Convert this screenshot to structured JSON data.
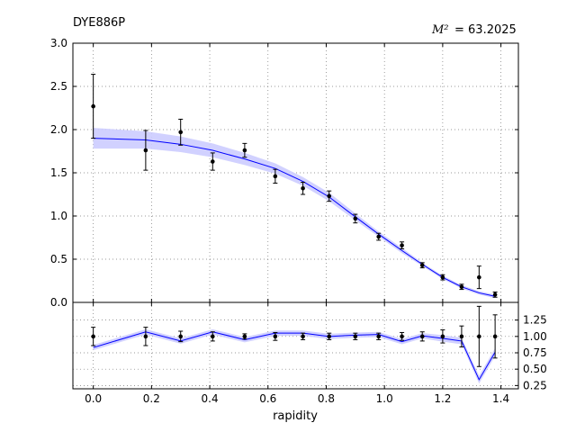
{
  "chart_data": {
    "type": "line",
    "title": "DYE886P",
    "annotation": {
      "label": "M²",
      "value": "= 63.2025"
    },
    "xlabel": "rapidity",
    "xlim": [
      -0.07,
      1.46
    ],
    "x_ticks": [
      "0.0",
      "0.2",
      "0.4",
      "0.6",
      "0.8",
      "1.0",
      "1.2",
      "1.4"
    ],
    "x_tick_values": [
      0.0,
      0.2,
      0.4,
      0.6,
      0.8,
      1.0,
      1.2,
      1.4
    ],
    "grid": true,
    "top_panel": {
      "ylim": [
        0.0,
        3.0
      ],
      "y_ticks": [
        "0.0",
        "0.5",
        "1.0",
        "1.5",
        "2.0",
        "2.5",
        "3.0"
      ],
      "y_tick_values": [
        0.0,
        0.5,
        1.0,
        1.5,
        2.0,
        2.5,
        3.0
      ],
      "data_points": {
        "x": [
          0.0,
          0.18,
          0.3,
          0.41,
          0.52,
          0.625,
          0.72,
          0.81,
          0.9,
          0.98,
          1.06,
          1.13,
          1.2,
          1.265,
          1.325,
          1.38
        ],
        "y": [
          2.27,
          1.76,
          1.97,
          1.63,
          1.76,
          1.46,
          1.32,
          1.23,
          0.97,
          0.76,
          0.66,
          0.43,
          0.29,
          0.18,
          0.29,
          0.09
        ],
        "err": [
          0.37,
          0.23,
          0.15,
          0.1,
          0.08,
          0.08,
          0.07,
          0.06,
          0.05,
          0.04,
          0.04,
          0.03,
          0.03,
          0.03,
          0.13,
          0.03
        ]
      },
      "prediction": {
        "x": [
          0.0,
          0.18,
          0.3,
          0.41,
          0.52,
          0.625,
          0.72,
          0.81,
          0.9,
          0.98,
          1.06,
          1.13,
          1.2,
          1.265,
          1.325,
          1.38
        ],
        "y": [
          1.9,
          1.88,
          1.83,
          1.76,
          1.66,
          1.55,
          1.4,
          1.22,
          0.99,
          0.79,
          0.6,
          0.44,
          0.29,
          0.18,
          0.11,
          0.07
        ],
        "band": [
          0.12,
          0.1,
          0.09,
          0.08,
          0.07,
          0.06,
          0.05,
          0.05,
          0.04,
          0.03,
          0.03,
          0.02,
          0.02,
          0.02,
          0.02,
          0.02
        ]
      },
      "colors": {
        "line": "#0000ff",
        "band": "#ccccff",
        "points": "#000000"
      }
    },
    "ratio_panel": {
      "ylim": [
        0.2,
        1.52
      ],
      "y_ticks": [
        "0.25",
        "0.50",
        "0.75",
        "1.00",
        "1.25"
      ],
      "y_tick_values": [
        0.25,
        0.5,
        0.75,
        1.0,
        1.25
      ],
      "data_points": {
        "x": [
          0.0,
          0.18,
          0.3,
          0.41,
          0.52,
          0.625,
          0.72,
          0.81,
          0.9,
          0.98,
          1.06,
          1.13,
          1.2,
          1.265,
          1.325,
          1.38
        ],
        "y": [
          1.0,
          1.0,
          1.0,
          1.0,
          1.0,
          1.0,
          1.0,
          1.0,
          1.0,
          1.0,
          1.0,
          1.0,
          1.0,
          1.0,
          1.0,
          1.0
        ],
        "err": [
          0.14,
          0.14,
          0.08,
          0.07,
          0.04,
          0.06,
          0.05,
          0.05,
          0.05,
          0.05,
          0.06,
          0.07,
          0.1,
          0.16,
          0.46,
          0.33
        ]
      },
      "prediction": {
        "x": [
          0.0,
          0.18,
          0.3,
          0.41,
          0.52,
          0.625,
          0.72,
          0.81,
          0.9,
          0.98,
          1.06,
          1.13,
          1.2,
          1.265,
          1.325,
          1.38
        ],
        "y": [
          0.83,
          1.07,
          0.93,
          1.07,
          0.95,
          1.05,
          1.05,
          1.0,
          1.02,
          1.03,
          0.92,
          1.01,
          0.97,
          0.93,
          0.34,
          0.76
        ],
        "band": [
          0.04,
          0.04,
          0.04,
          0.04,
          0.04,
          0.04,
          0.04,
          0.04,
          0.04,
          0.04,
          0.04,
          0.04,
          0.05,
          0.05,
          0.06,
          0.06
        ]
      },
      "colors": {
        "line": "#0000ff",
        "band": "#ccccff",
        "points": "#000000"
      }
    }
  }
}
